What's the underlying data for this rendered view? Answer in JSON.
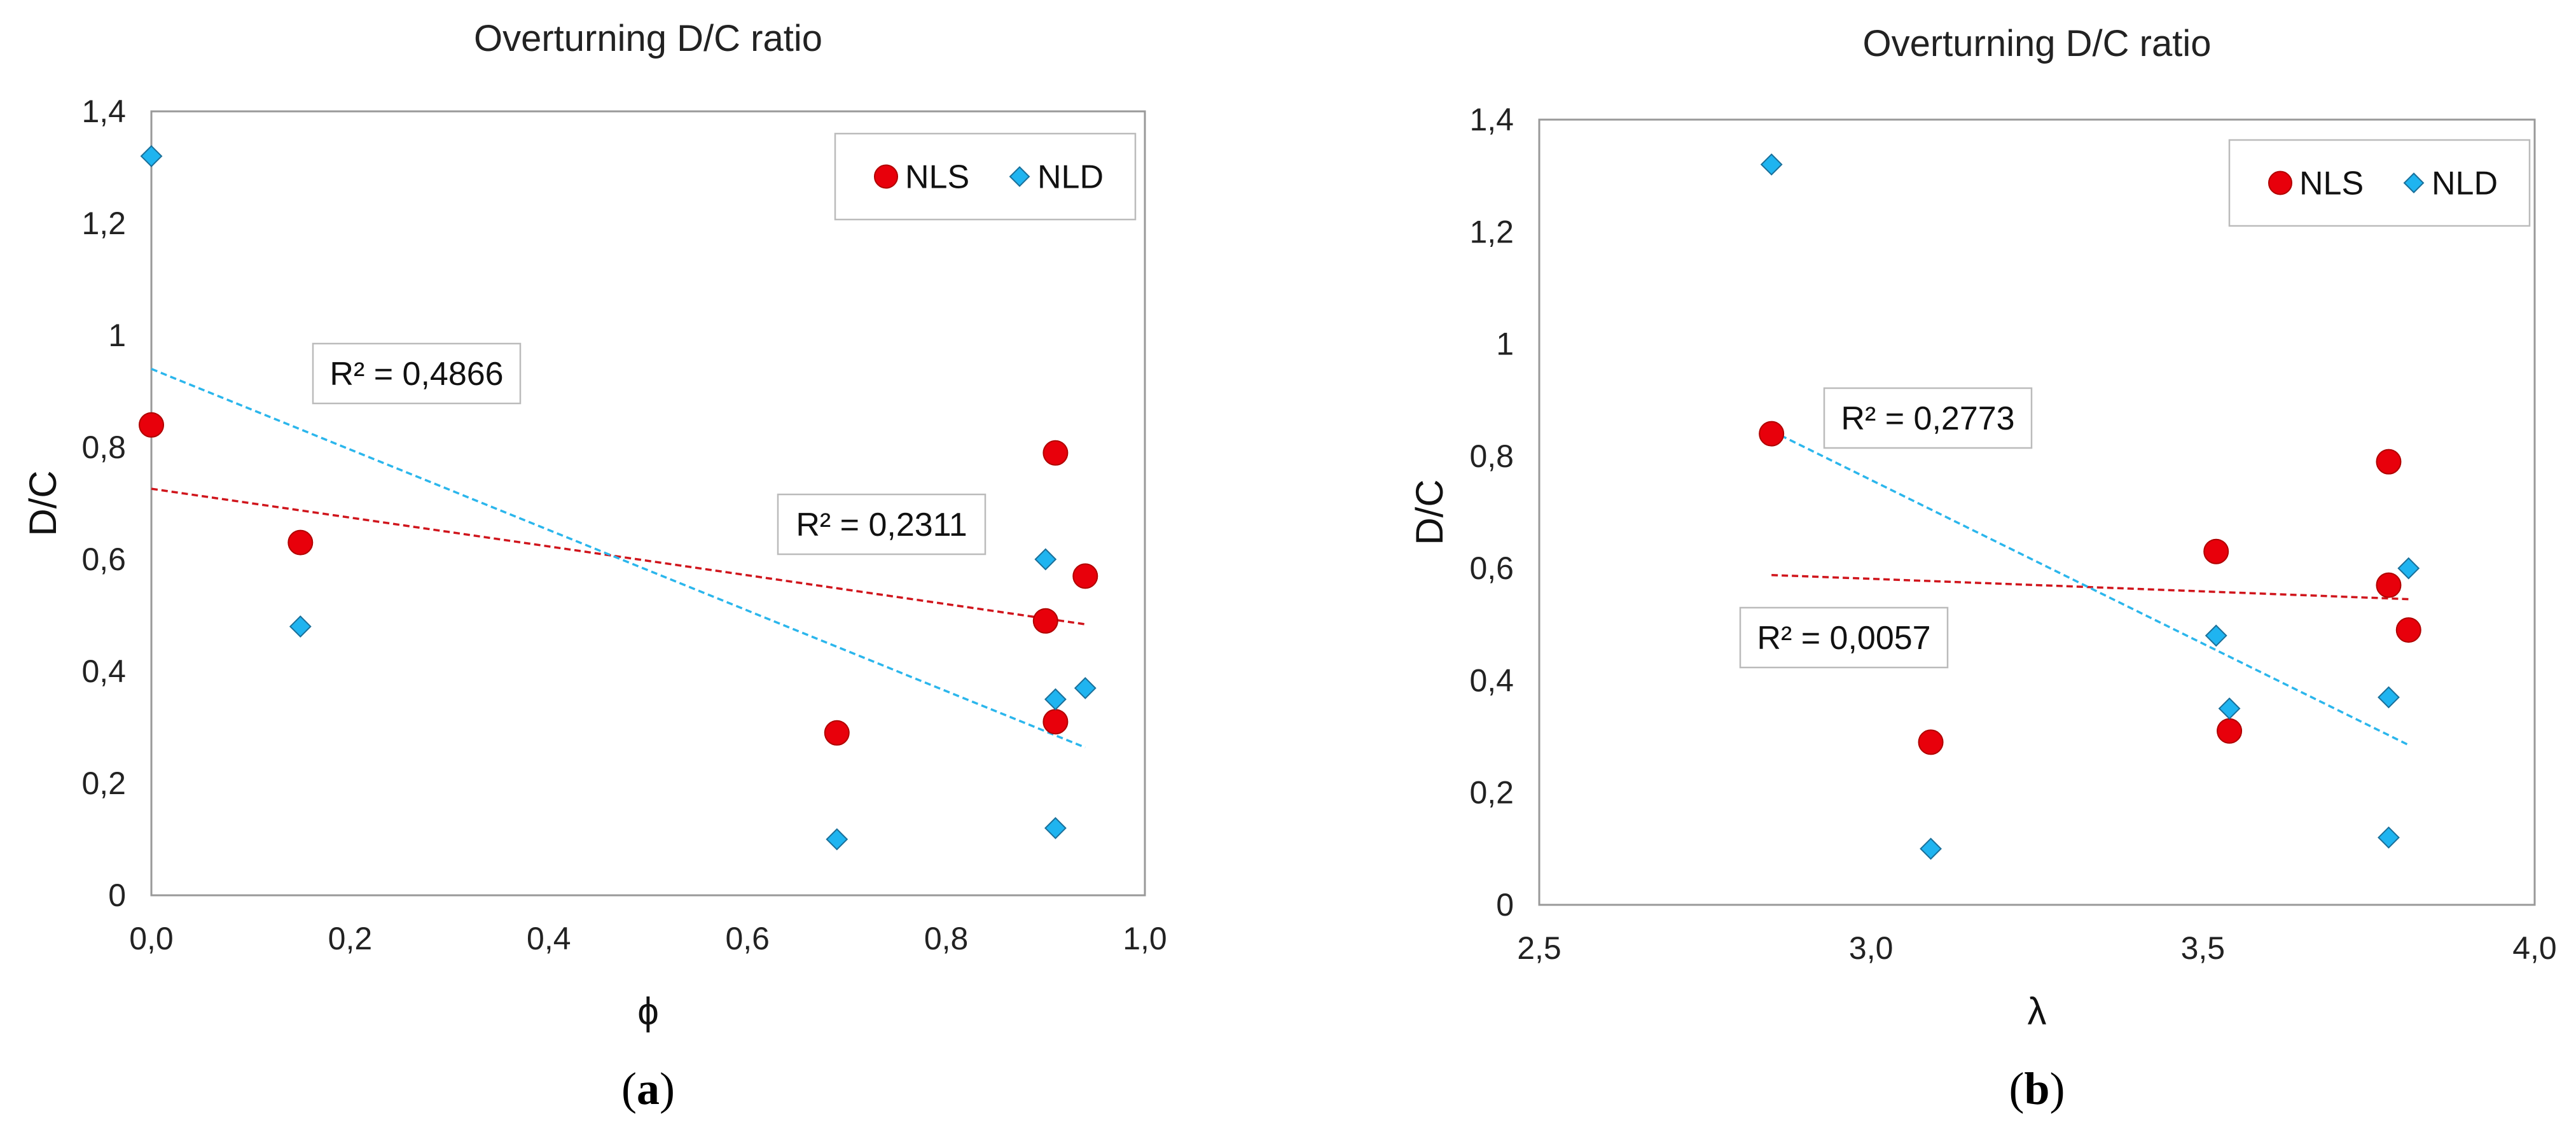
{
  "colors": {
    "nls": "#e8000b",
    "nld": "#1fb4f0",
    "nls_trend": "#d0151c",
    "nld_trend": "#2bb6ec",
    "frame": "#999999",
    "text": "#222222"
  },
  "chart_data": [
    {
      "id": "a",
      "type": "scatter",
      "title": "Overturning D/C ratio",
      "xlabel": "ϕ",
      "ylabel": "D/C",
      "panel_label": "a",
      "xlim": [
        0.0,
        1.0
      ],
      "ylim": [
        0,
        1.4
      ],
      "xticks": [
        0.0,
        0.2,
        0.4,
        0.6,
        0.8,
        1.0
      ],
      "xtick_labels": [
        "0,0",
        "0,2",
        "0,4",
        "0,6",
        "0,8",
        "1,0"
      ],
      "yticks": [
        0,
        0.2,
        0.4,
        0.6,
        0.8,
        1.0,
        1.2,
        1.4
      ],
      "ytick_labels": [
        "0",
        "0,2",
        "0,4",
        "0,6",
        "0,8",
        "1",
        "1,2",
        "1,4"
      ],
      "legend": [
        "NLS",
        "NLD"
      ],
      "legend_position": "top-right",
      "series": [
        {
          "name": "NLS",
          "marker": "circle",
          "points": [
            [
              0.0,
              0.84
            ],
            [
              0.15,
              0.63
            ],
            [
              0.69,
              0.29
            ],
            [
              0.9,
              0.49
            ],
            [
              0.91,
              0.79
            ],
            [
              0.91,
              0.31
            ],
            [
              0.94,
              0.57
            ]
          ],
          "trend": {
            "x": [
              0.0,
              0.94
            ],
            "y": [
              0.726,
              0.484
            ],
            "r2_label": "R² = 0,2311"
          }
        },
        {
          "name": "NLD",
          "marker": "diamond",
          "points": [
            [
              0.0,
              1.32
            ],
            [
              0.15,
              0.48
            ],
            [
              0.69,
              0.1
            ],
            [
              0.9,
              0.6
            ],
            [
              0.91,
              0.35
            ],
            [
              0.91,
              0.12
            ],
            [
              0.94,
              0.37
            ]
          ],
          "trend": {
            "x": [
              0.0,
              0.94
            ],
            "y": [
              0.94,
              0.264
            ],
            "r2_label": "R² = 0,4866"
          }
        }
      ]
    },
    {
      "id": "b",
      "type": "scatter",
      "title": "Overturning D/C ratio",
      "xlabel": "λ",
      "ylabel": "D/C",
      "panel_label": "b",
      "xlim": [
        2.5,
        4.0
      ],
      "ylim": [
        0,
        1.4
      ],
      "xticks": [
        2.5,
        3.0,
        3.5,
        4.0
      ],
      "xtick_labels": [
        "2,5",
        "3,0",
        "3,5",
        "4,0"
      ],
      "yticks": [
        0,
        0.2,
        0.4,
        0.6,
        0.8,
        1.0,
        1.2,
        1.4
      ],
      "ytick_labels": [
        "0",
        "0,2",
        "0,4",
        "0,6",
        "0,8",
        "1",
        "1,2",
        "1,4"
      ],
      "legend": [
        "NLS",
        "NLD"
      ],
      "legend_position": "top-right",
      "series": [
        {
          "name": "NLS",
          "marker": "circle",
          "points": [
            [
              2.85,
              0.84
            ],
            [
              3.09,
              0.29
            ],
            [
              3.52,
              0.63
            ],
            [
              3.54,
              0.31
            ],
            [
              3.78,
              0.79
            ],
            [
              3.78,
              0.57
            ],
            [
              3.81,
              0.49
            ]
          ],
          "trend": {
            "x": [
              2.85,
              3.81
            ],
            "y": [
              0.588,
              0.545
            ],
            "r2_label": "R² = 0,0057"
          }
        },
        {
          "name": "NLD",
          "marker": "diamond",
          "points": [
            [
              2.85,
              1.32
            ],
            [
              3.09,
              0.1
            ],
            [
              3.52,
              0.48
            ],
            [
              3.54,
              0.35
            ],
            [
              3.78,
              0.37
            ],
            [
              3.78,
              0.12
            ],
            [
              3.81,
              0.6
            ]
          ],
          "trend": {
            "x": [
              2.85,
              3.81
            ],
            "y": [
              0.845,
              0.285
            ],
            "r2_label": "R² = 0,2773"
          }
        }
      ]
    }
  ]
}
